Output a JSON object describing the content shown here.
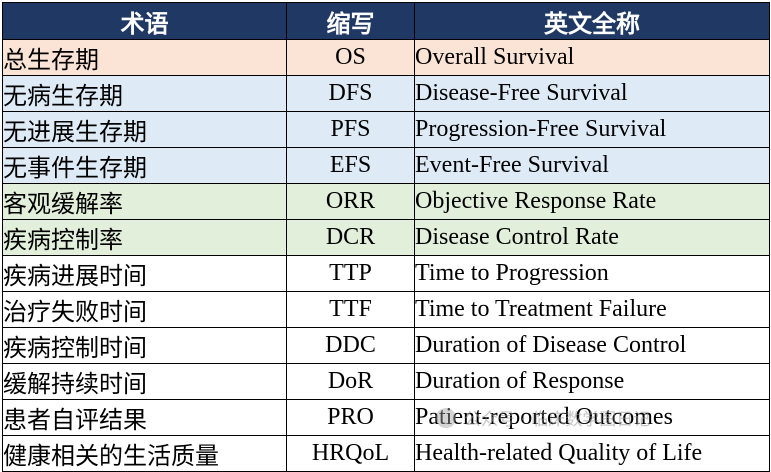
{
  "colors": {
    "header_bg": "#1f3864",
    "os": "#fbe4d5",
    "blue": "#deebf7",
    "green": "#e2efda",
    "white": "#ffffff"
  },
  "header": {
    "term": "术语",
    "abbr": "缩写",
    "english": "英文全称"
  },
  "rows": [
    {
      "term": "总生存期",
      "abbr": "OS",
      "english": "Overall Survival",
      "color": "#fbe4d5"
    },
    {
      "term": "无病生存期",
      "abbr": "DFS",
      "english": "Disease-Free Survival",
      "color": "#deebf7"
    },
    {
      "term": "无进展生存期",
      "abbr": "PFS",
      "english": "Progression-Free Survival",
      "color": "#deebf7"
    },
    {
      "term": "无事件生存期",
      "abbr": "EFS",
      "english": "Event-Free Survival",
      "color": "#deebf7"
    },
    {
      "term": "客观缓解率",
      "abbr": "ORR",
      "english": "Objective Response Rate",
      "color": "#e2efda"
    },
    {
      "term": "疾病控制率",
      "abbr": "DCR",
      "english": "Disease Control Rate",
      "color": "#e2efda"
    },
    {
      "term": "疾病进展时间",
      "abbr": "TTP",
      "english": "Time to Progression",
      "color": "#ffffff"
    },
    {
      "term": "治疗失败时间",
      "abbr": "TTF",
      "english": "Time to Treatment Failure",
      "color": "#ffffff"
    },
    {
      "term": "疾病控制时间",
      "abbr": "DDC",
      "english": "Duration of Disease Control",
      "color": "#ffffff"
    },
    {
      "term": "缓解持续时间",
      "abbr": "DoR",
      "english": "Duration of Response",
      "color": "#ffffff"
    },
    {
      "term": "患者自评结果",
      "abbr": "PRO",
      "english": "Patient-reported Outcomes",
      "color": "#ffffff"
    },
    {
      "term": "健康相关的生活质量",
      "abbr": "HRQoL",
      "english": "Health-related Quality of Life",
      "color": "#ffffff"
    }
  ],
  "watermark": {
    "text": "公众号 · 临床数学图日记"
  }
}
